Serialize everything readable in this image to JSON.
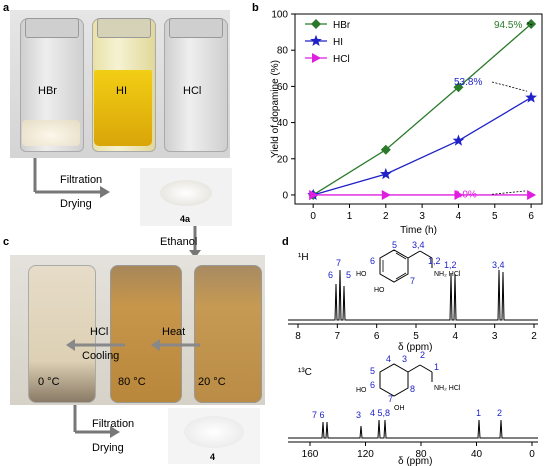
{
  "panels": {
    "a": {
      "letter": "a",
      "vials": [
        "HBr",
        "HI",
        "HCl"
      ],
      "step1": "Filtration",
      "step2": "Drying",
      "product": "4a"
    },
    "b": {
      "letter": "b"
    },
    "c": {
      "letter": "c",
      "reagent": "Ethanol",
      "vials": [
        "0 °C",
        "80 °C",
        "20 °C"
      ],
      "arrow_hcl": "HCl",
      "arrow_cooling": "Cooling",
      "arrow_heat": "Heat",
      "step1": "Filtration",
      "step2": "Drying",
      "product": "4"
    },
    "d": {
      "letter": "d",
      "h_label": "¹H",
      "c_label": "¹³C",
      "h_axis": "δ (ppm)",
      "c_axis": "δ (ppm)",
      "h_ticks": [
        "8",
        "7",
        "6",
        "5",
        "4",
        "3",
        "2"
      ],
      "c_ticks": [
        "160",
        "120",
        "80",
        "40",
        "0"
      ],
      "h_struct": {
        "n1": "5",
        "n2": "3,4",
        "n3": "1,2",
        "n4": "6",
        "n5": "7",
        "oh1": "HO",
        "oh2": "HO",
        "nh": "NH₂ HCl"
      },
      "h_peaks": {
        "p7": "7",
        "p6": "6",
        "p5": "5",
        "p12": "1,2",
        "p34": "3,4"
      },
      "c_struct": {
        "n4": "4",
        "n5": "5",
        "n3": "3",
        "n2": "2",
        "n1": "1",
        "n6": "6",
        "n7": "7",
        "n8": "8",
        "oh1": "HO",
        "oh2": "OH",
        "nh": "NH₂ HCl"
      },
      "c_peaks": {
        "p76": "7 6",
        "p3": "3",
        "p58": "4 5,8",
        "p1": "1",
        "p2": "2"
      }
    }
  },
  "chart_data": {
    "type": "line",
    "xlabel": "Time (h)",
    "ylabel": "Yield of dopamine (%)",
    "xlim": [
      -0.5,
      6.3
    ],
    "ylim": [
      -5,
      100
    ],
    "xticks": [
      0,
      1,
      2,
      3,
      4,
      5,
      6
    ],
    "yticks": [
      0,
      20,
      40,
      60,
      80,
      100
    ],
    "legend_position": "top-left",
    "series": [
      {
        "name": "HBr",
        "color": "#2a7a2a",
        "marker": "diamond",
        "x": [
          0,
          2,
          4,
          6
        ],
        "y": [
          0,
          25,
          59.5,
          94.5
        ]
      },
      {
        "name": "HI",
        "color": "#1f22c8",
        "marker": "star",
        "x": [
          0,
          2,
          4,
          6
        ],
        "y": [
          0,
          11.5,
          30,
          53.8
        ]
      },
      {
        "name": "HCl",
        "color": "#e01ee0",
        "marker": "triangle-right",
        "x": [
          0,
          2,
          4,
          6
        ],
        "y": [
          0,
          0,
          0,
          0
        ]
      }
    ],
    "annotations": [
      {
        "text": "94.5%",
        "color": "#2a7a2a"
      },
      {
        "text": "53.8%",
        "color": "#1f22c8"
      },
      {
        "text": "0.0%",
        "color": "#e01ee0"
      }
    ]
  }
}
